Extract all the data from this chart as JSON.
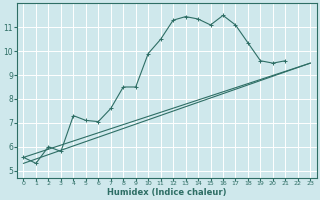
{
  "bg_color": "#cfe8ec",
  "grid_color": "#ffffff",
  "line_color": "#2e6e65",
  "xlabel": "Humidex (Indice chaleur)",
  "xlim": [
    -0.5,
    23.5
  ],
  "ylim": [
    4.7,
    12.0
  ],
  "yticks": [
    5,
    6,
    7,
    8,
    9,
    10,
    11
  ],
  "xticks": [
    0,
    1,
    2,
    3,
    4,
    5,
    6,
    7,
    8,
    9,
    10,
    11,
    12,
    13,
    14,
    15,
    16,
    17,
    18,
    19,
    20,
    21,
    22,
    23
  ],
  "line1_x": [
    0,
    1,
    2,
    3,
    4,
    5,
    6,
    7,
    8,
    9,
    10,
    11,
    12,
    13,
    14,
    15,
    16,
    17,
    18,
    19,
    20,
    21
  ],
  "line1_y": [
    5.55,
    5.3,
    6.0,
    5.8,
    7.3,
    7.1,
    7.05,
    7.6,
    8.5,
    8.5,
    9.9,
    10.5,
    11.3,
    11.45,
    11.35,
    11.1,
    11.5,
    11.1,
    10.35,
    9.6,
    9.5,
    9.6
  ],
  "line2_x": [
    0,
    23
  ],
  "line2_y": [
    5.55,
    9.5
  ],
  "line3_x": [
    0,
    23
  ],
  "line3_y": [
    5.3,
    9.5
  ]
}
